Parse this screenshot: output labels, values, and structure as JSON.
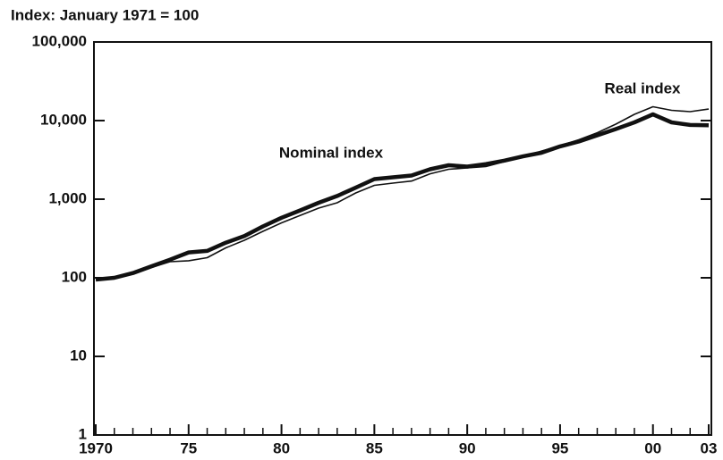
{
  "chart_data": {
    "type": "line",
    "title": "Index: January 1971 = 100",
    "annotations": [
      "Nominal index",
      "Real index"
    ],
    "x": [
      1970,
      1971,
      1972,
      1973,
      1974,
      1975,
      1976,
      1977,
      1978,
      1979,
      1980,
      1981,
      1982,
      1983,
      1984,
      1985,
      1986,
      1987,
      1988,
      1989,
      1990,
      1991,
      1992,
      1993,
      1994,
      1995,
      1996,
      1997,
      1998,
      1999,
      2000,
      2001,
      2002,
      2003
    ],
    "series": [
      {
        "name": "Nominal index",
        "color": "#111111",
        "values": [
          95,
          100,
          115,
          140,
          170,
          210,
          220,
          280,
          340,
          450,
          580,
          720,
          900,
          1100,
          1400,
          1800,
          1900,
          2000,
          2400,
          2700,
          2600,
          2800,
          3100,
          3500,
          3900,
          4700,
          5400,
          6500,
          7800,
          9500,
          12000,
          9500,
          8800,
          8700
        ]
      },
      {
        "name": "Real index",
        "color": "#111111",
        "values": [
          95,
          100,
          112,
          135,
          160,
          165,
          180,
          240,
          300,
          390,
          500,
          620,
          770,
          900,
          1200,
          1500,
          1600,
          1700,
          2100,
          2400,
          2500,
          2600,
          3000,
          3500,
          4100,
          4800,
          5700,
          7000,
          9000,
          12000,
          15000,
          13500,
          13000,
          14000
        ]
      }
    ],
    "xlim": [
      1970,
      2003
    ],
    "xticks": [
      {
        "value": 1970,
        "label": "1970"
      },
      {
        "value": 1975,
        "label": "75"
      },
      {
        "value": 1980,
        "label": "80"
      },
      {
        "value": 1985,
        "label": "85"
      },
      {
        "value": 1990,
        "label": "90"
      },
      {
        "value": 1995,
        "label": "95"
      },
      {
        "value": 2000,
        "label": "00"
      },
      {
        "value": 2003,
        "label": "03"
      }
    ],
    "xticks_minor": [
      1971,
      1972,
      1973,
      1974,
      1976,
      1977,
      1978,
      1979,
      1981,
      1982,
      1983,
      1984,
      1986,
      1987,
      1988,
      1989,
      1991,
      1992,
      1993,
      1994,
      1996,
      1997,
      1998,
      1999,
      2001,
      2002
    ],
    "ylim": [
      1,
      100000
    ],
    "yticks": [
      1,
      10,
      100,
      {
        "value": 1000,
        "label": "1,000"
      },
      {
        "value": 10000,
        "label": "10,000"
      },
      {
        "value": 100000,
        "label": "100,000"
      }
    ],
    "log_scale": true,
    "grid": false
  }
}
